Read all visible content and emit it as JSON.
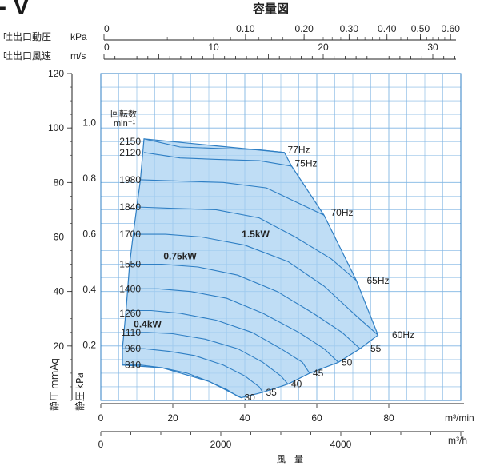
{
  "header": {
    "partial_title": "- V",
    "capacity_title": "容量図"
  },
  "top_axes": {
    "dynamic_pressure": {
      "label": "吐出口動圧",
      "unit": "kPa",
      "ticks": [
        {
          "value": 0,
          "label": "0"
        },
        {
          "value": 0.1,
          "label": "0.10"
        },
        {
          "value": 0.2,
          "label": "0.20"
        },
        {
          "value": 0.3,
          "label": "0.30"
        },
        {
          "value": 0.4,
          "label": "0.40"
        },
        {
          "value": 0.5,
          "label": "0.50"
        },
        {
          "value": 0.6,
          "label": "0.60"
        }
      ]
    },
    "velocity": {
      "label": "吐出口風速",
      "unit": "m/s",
      "ticks": [
        {
          "value": 0,
          "label": "0"
        },
        {
          "value": 10,
          "label": "10"
        },
        {
          "value": 20,
          "label": "20"
        },
        {
          "value": 30,
          "label": "30"
        }
      ]
    }
  },
  "left_axes": {
    "mmaq": {
      "label": "静圧",
      "unit": "mmAq",
      "ticks": [
        {
          "value": 20,
          "label": "20"
        },
        {
          "value": 40,
          "label": "40"
        },
        {
          "value": 60,
          "label": "60"
        },
        {
          "value": 80,
          "label": "80"
        },
        {
          "value": 100,
          "label": "100"
        },
        {
          "value": 120,
          "label": "120"
        }
      ]
    },
    "kpa": {
      "label": "静圧",
      "unit": "kPa",
      "ticks": [
        {
          "value": 0.2,
          "label": "0.2"
        },
        {
          "value": 0.4,
          "label": "0.4"
        },
        {
          "value": 0.6,
          "label": "0.6"
        },
        {
          "value": 0.8,
          "label": "0.8"
        },
        {
          "value": 1.0,
          "label": "1.0"
        }
      ]
    }
  },
  "bottom_axes": {
    "per_min": {
      "unit": "m³/min",
      "ticks": [
        {
          "value": 0,
          "label": "0"
        },
        {
          "value": 20,
          "label": "20"
        },
        {
          "value": 40,
          "label": "40"
        },
        {
          "value": 60,
          "label": "60"
        },
        {
          "value": 80,
          "label": "80"
        }
      ]
    },
    "per_hour": {
      "unit": "m³/h",
      "ticks": [
        {
          "value": 0,
          "label": "0"
        },
        {
          "value": 2000,
          "label": "2000"
        },
        {
          "value": 4000,
          "label": "4000"
        }
      ]
    },
    "xlabel": "風　量"
  },
  "chart_data": {
    "type": "area",
    "title": "容量図",
    "xlabel": "風量",
    "ylabel": "静圧",
    "x_unit": "m³/min",
    "y_unit": "mmAq",
    "xlim": [
      0,
      100
    ],
    "ylim": [
      0,
      120
    ],
    "grid": true,
    "fill_color": "#a9d2f1",
    "line_color": "#2f7fc4",
    "speed_header": "回転数",
    "speed_unit": "min⁻¹",
    "speed_labels": [
      {
        "label": "2150",
        "y": 95
      },
      {
        "label": "2120",
        "y": 91
      },
      {
        "label": "1980",
        "y": 81
      },
      {
        "label": "1840",
        "y": 71
      },
      {
        "label": "1700",
        "y": 61
      },
      {
        "label": "1550",
        "y": 50
      },
      {
        "label": "1400",
        "y": 41
      },
      {
        "label": "1260",
        "y": 32
      },
      {
        "label": "1110",
        "y": 25
      },
      {
        "label": "960",
        "y": 19
      },
      {
        "label": "810",
        "y": 13
      }
    ],
    "frequency_labels": [
      {
        "label": "77Hz",
        "x": 51,
        "y": 92
      },
      {
        "label": "75Hz",
        "x": 53,
        "y": 87
      },
      {
        "label": "70Hz",
        "x": 63,
        "y": 69
      },
      {
        "label": "65Hz",
        "x": 73,
        "y": 44
      },
      {
        "label": "60Hz",
        "x": 80,
        "y": 24
      },
      {
        "label": "55",
        "x": 74,
        "y": 19
      },
      {
        "label": "50",
        "x": 66,
        "y": 14
      },
      {
        "label": "45",
        "x": 58,
        "y": 10
      },
      {
        "label": "40",
        "x": 52,
        "y": 6
      },
      {
        "label": "35",
        "x": 45,
        "y": 3
      },
      {
        "label": "30",
        "x": 39,
        "y": 1
      }
    ],
    "power_labels": [
      {
        "label": "1.5kW",
        "x": 43,
        "y": 61
      },
      {
        "label": "0.75kW",
        "x": 22,
        "y": 53
      },
      {
        "label": "0.4kW",
        "x": 13,
        "y": 28
      }
    ],
    "fan_curves": [
      {
        "name": "2150",
        "points": [
          [
            12,
            96
          ],
          [
            22,
            93
          ],
          [
            32,
            92.5
          ],
          [
            44,
            92
          ],
          [
            51,
            91
          ]
        ]
      },
      {
        "name": "2120",
        "points": [
          [
            12,
            91
          ],
          [
            22,
            89
          ],
          [
            32,
            88.5
          ],
          [
            44,
            88
          ],
          [
            53,
            86
          ]
        ]
      },
      {
        "name": "1980",
        "points": [
          [
            11,
            81
          ],
          [
            22,
            80.5
          ],
          [
            34,
            80
          ],
          [
            46,
            78
          ],
          [
            54,
            73
          ],
          [
            62,
            68
          ]
        ]
      },
      {
        "name": "1840",
        "points": [
          [
            10,
            71
          ],
          [
            20,
            70.5
          ],
          [
            32,
            70
          ],
          [
            44,
            67
          ],
          [
            54,
            60
          ],
          [
            64,
            52
          ],
          [
            71,
            44
          ]
        ]
      },
      {
        "name": "1700",
        "points": [
          [
            9,
            61
          ],
          [
            18,
            61
          ],
          [
            28,
            60
          ],
          [
            40,
            57
          ],
          [
            52,
            51
          ],
          [
            62,
            42
          ],
          [
            71,
            31
          ],
          [
            77,
            24
          ]
        ]
      },
      {
        "name": "1550",
        "points": [
          [
            8,
            50
          ],
          [
            17,
            50
          ],
          [
            27,
            49
          ],
          [
            38,
            46
          ],
          [
            49,
            40
          ],
          [
            59,
            32
          ],
          [
            67,
            25
          ],
          [
            72,
            19
          ]
        ]
      },
      {
        "name": "1400",
        "points": [
          [
            8,
            41
          ],
          [
            16,
            41
          ],
          [
            25,
            40
          ],
          [
            35,
            37.5
          ],
          [
            45,
            32
          ],
          [
            55,
            25
          ],
          [
            62,
            19
          ],
          [
            66,
            14
          ]
        ]
      },
      {
        "name": "1260",
        "points": [
          [
            7,
            33
          ],
          [
            14,
            33
          ],
          [
            22,
            32
          ],
          [
            32,
            29.5
          ],
          [
            42,
            25
          ],
          [
            50,
            19
          ],
          [
            56,
            14
          ],
          [
            58,
            10
          ]
        ]
      },
      {
        "name": "1110",
        "points": [
          [
            7,
            25
          ],
          [
            13,
            25
          ],
          [
            20,
            24.5
          ],
          [
            29,
            22.5
          ],
          [
            38,
            19
          ],
          [
            45,
            14
          ],
          [
            50,
            9
          ],
          [
            52,
            6
          ]
        ]
      },
      {
        "name": "960",
        "points": [
          [
            6,
            19
          ],
          [
            12,
            19
          ],
          [
            19,
            18
          ],
          [
            26,
            16.5
          ],
          [
            34,
            13
          ],
          [
            40,
            9
          ],
          [
            44,
            5
          ],
          [
            45,
            3
          ]
        ]
      },
      {
        "name": "810",
        "points": [
          [
            6,
            13
          ],
          [
            11,
            13
          ],
          [
            17,
            12
          ],
          [
            24,
            10
          ],
          [
            30,
            7
          ],
          [
            35,
            4
          ],
          [
            38,
            1.5
          ],
          [
            39,
            1
          ]
        ]
      }
    ],
    "operating_region": [
      [
        12,
        96
      ],
      [
        51,
        91
      ],
      [
        53,
        86
      ],
      [
        62,
        68
      ],
      [
        71,
        44
      ],
      [
        77,
        24
      ],
      [
        72,
        19
      ],
      [
        66,
        14
      ],
      [
        58,
        10
      ],
      [
        52,
        6
      ],
      [
        45,
        3
      ],
      [
        39,
        1
      ],
      [
        30,
        7
      ],
      [
        17,
        12
      ],
      [
        6,
        13
      ],
      [
        6,
        19
      ],
      [
        7,
        33
      ],
      [
        8,
        50
      ],
      [
        9,
        61
      ],
      [
        11,
        81
      ]
    ]
  }
}
